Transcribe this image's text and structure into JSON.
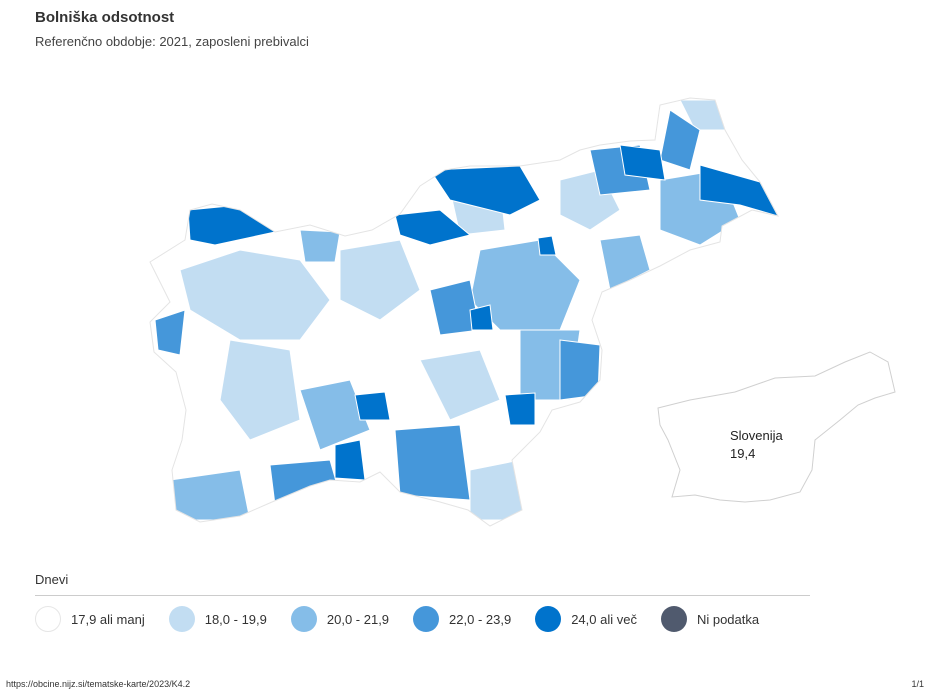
{
  "header": {
    "title": "Bolniška odsotnost",
    "subtitle": "Referenčno obdobje: 2021, zaposleni prebivalci"
  },
  "map": {
    "region": "Slovenija",
    "national_value": "19,4",
    "colors": {
      "class_1": "#ffffff",
      "class_2": "#c2ddf2",
      "class_3": "#85bde8",
      "class_4": "#4597da",
      "class_5": "#0073cc",
      "no_data": "#505a6e"
    }
  },
  "legend": {
    "title": "Dnevi",
    "items": [
      {
        "label": "17,9 ali manj",
        "color": "#ffffff"
      },
      {
        "label": "18,0 - 19,9",
        "color": "#c2ddf2"
      },
      {
        "label": "20,0 - 21,9",
        "color": "#85bde8"
      },
      {
        "label": "22,0 - 23,9",
        "color": "#4597da"
      },
      {
        "label": "24,0 ali več",
        "color": "#0073cc"
      },
      {
        "label": "Ni podatka",
        "color": "#505a6e"
      }
    ]
  },
  "footer": {
    "url": "https://obcine.nijz.si/tematske-karte/2023/K4.2",
    "page": "1/1"
  }
}
